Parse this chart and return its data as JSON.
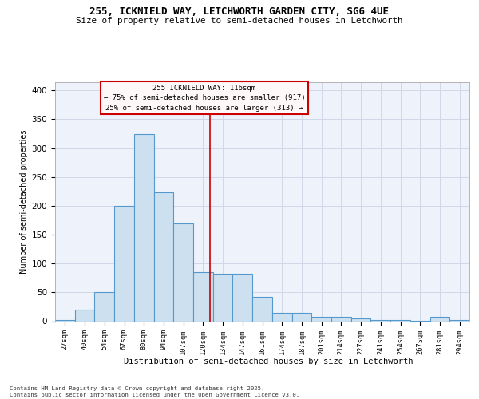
{
  "title1": "255, ICKNIELD WAY, LETCHWORTH GARDEN CITY, SG6 4UE",
  "title2": "Size of property relative to semi-detached houses in Letchworth",
  "xlabel": "Distribution of semi-detached houses by size in Letchworth",
  "ylabel": "Number of semi-detached properties",
  "categories": [
    "27sqm",
    "40sqm",
    "54sqm",
    "67sqm",
    "80sqm",
    "94sqm",
    "107sqm",
    "120sqm",
    "134sqm",
    "147sqm",
    "161sqm",
    "174sqm",
    "187sqm",
    "201sqm",
    "214sqm",
    "227sqm",
    "241sqm",
    "254sqm",
    "267sqm",
    "281sqm",
    "294sqm"
  ],
  "values": [
    2,
    20,
    50,
    200,
    325,
    223,
    169,
    85,
    82,
    82,
    42,
    15,
    15,
    7,
    7,
    5,
    2,
    2,
    1,
    8,
    2
  ],
  "bar_color": "#cce0f0",
  "bar_edge_color": "#5599cc",
  "grid_color": "#d0d8e8",
  "background_color": "#eef2fb",
  "vline_color": "#cc0000",
  "vline_x": 7.35,
  "annotation_lines": [
    "255 ICKNIELD WAY: 116sqm",
    "← 75% of semi-detached houses are smaller (917)",
    "25% of semi-detached houses are larger (313) →"
  ],
  "annotation_box_facecolor": "#fff8f8",
  "annotation_box_edge": "#cc0000",
  "footer1": "Contains HM Land Registry data © Crown copyright and database right 2025.",
  "footer2": "Contains public sector information licensed under the Open Government Licence v3.0.",
  "ylim": [
    0,
    415
  ],
  "yticks": [
    0,
    50,
    100,
    150,
    200,
    250,
    300,
    350,
    400
  ]
}
